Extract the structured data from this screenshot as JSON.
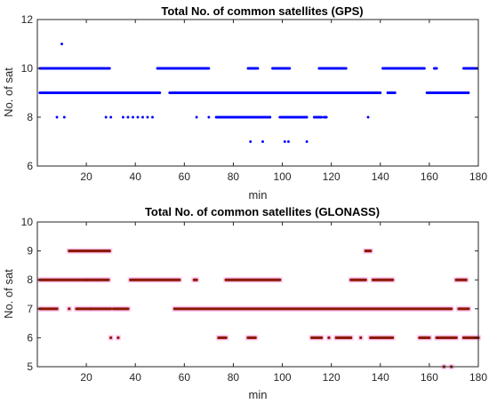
{
  "chart_data": [
    {
      "type": "scatter",
      "title": "Total No. of common satellites (GPS)",
      "xlabel": "min",
      "ylabel": "No. of sat",
      "xlim": [
        0,
        180
      ],
      "ylim": [
        6,
        12
      ],
      "xticks": [
        20,
        40,
        60,
        80,
        100,
        120,
        140,
        160,
        180
      ],
      "yticks": [
        6,
        8,
        10,
        12
      ],
      "grid": false,
      "marker_color": "#0000ff",
      "runs": [
        [
          1,
          29.5,
          10
        ],
        [
          49,
          70,
          10
        ],
        [
          86,
          90,
          10
        ],
        [
          96,
          103,
          10
        ],
        [
          115,
          126,
          10
        ],
        [
          141,
          158,
          10
        ],
        [
          162,
          163,
          10
        ],
        [
          174,
          179.5,
          10
        ],
        [
          1,
          50,
          9
        ],
        [
          54,
          140,
          9
        ],
        [
          143,
          146,
          9
        ],
        [
          159,
          176,
          9
        ],
        [
          73,
          95,
          8
        ],
        [
          99,
          110,
          8
        ],
        [
          113,
          116,
          8
        ],
        [
          117,
          118,
          8
        ]
      ],
      "points": [
        [
          10,
          11
        ],
        [
          8,
          8
        ],
        [
          11,
          8
        ],
        [
          28,
          8
        ],
        [
          30,
          8
        ],
        [
          35,
          8
        ],
        [
          37,
          8
        ],
        [
          39,
          8
        ],
        [
          41,
          8
        ],
        [
          43,
          8
        ],
        [
          45,
          8
        ],
        [
          47,
          8
        ],
        [
          65,
          8
        ],
        [
          70,
          8
        ],
        [
          135,
          8
        ],
        [
          87,
          7
        ],
        [
          92,
          7
        ],
        [
          101,
          7
        ],
        [
          102.5,
          7
        ],
        [
          110,
          7
        ]
      ]
    },
    {
      "type": "scatter",
      "title": "Total No. of common satellites (GLONASS)",
      "xlabel": "min",
      "ylabel": "No. of sat",
      "xlim": [
        0,
        180
      ],
      "ylim": [
        5,
        10
      ],
      "xticks": [
        20,
        40,
        60,
        80,
        100,
        120,
        140,
        160,
        180
      ],
      "yticks": [
        5,
        6,
        7,
        8,
        9,
        10
      ],
      "grid": false,
      "marker_color": "#8b1a00",
      "runs": [
        [
          13,
          29.5,
          9
        ],
        [
          134,
          136,
          9
        ],
        [
          1,
          29,
          8
        ],
        [
          38,
          58,
          8
        ],
        [
          64,
          65,
          8
        ],
        [
          77,
          99,
          8
        ],
        [
          128,
          134,
          8
        ],
        [
          137,
          145,
          8
        ],
        [
          171,
          175,
          8
        ],
        [
          1,
          8,
          7
        ],
        [
          16,
          30,
          7
        ],
        [
          31,
          37,
          7
        ],
        [
          56,
          169,
          7
        ],
        [
          172,
          176,
          7
        ],
        [
          74,
          77,
          6
        ],
        [
          86,
          89,
          6
        ],
        [
          112,
          116,
          6
        ],
        [
          122,
          128,
          6
        ],
        [
          136,
          145,
          6
        ],
        [
          156,
          160,
          6
        ],
        [
          163,
          171,
          6
        ],
        [
          174,
          180,
          6
        ]
      ],
      "points": [
        [
          13,
          7
        ],
        [
          20,
          8
        ],
        [
          22,
          7
        ],
        [
          30,
          6
        ],
        [
          33,
          6
        ],
        [
          24,
          8
        ],
        [
          119,
          6
        ],
        [
          132,
          6
        ],
        [
          166,
          5
        ],
        [
          169,
          5
        ]
      ]
    }
  ]
}
